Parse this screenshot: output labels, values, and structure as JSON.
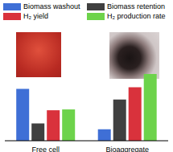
{
  "chart_data": {
    "type": "bar",
    "categories": [
      "Free cell",
      "Bioaggregate"
    ],
    "series": [
      {
        "name": "Biomass washout",
        "color": "#3f6fd6",
        "values": [
          63,
          14
        ]
      },
      {
        "name": "Biomass retention",
        "color": "#404040",
        "values": [
          21,
          50
        ]
      },
      {
        "name": "H₂ yield",
        "color": "#d9323c",
        "values": [
          37,
          65
        ]
      },
      {
        "name": "H₂ production rate",
        "color": "#6dd34b",
        "values": [
          38,
          81
        ]
      }
    ],
    "tick_labels": "x",
    "grid": false
  }
}
